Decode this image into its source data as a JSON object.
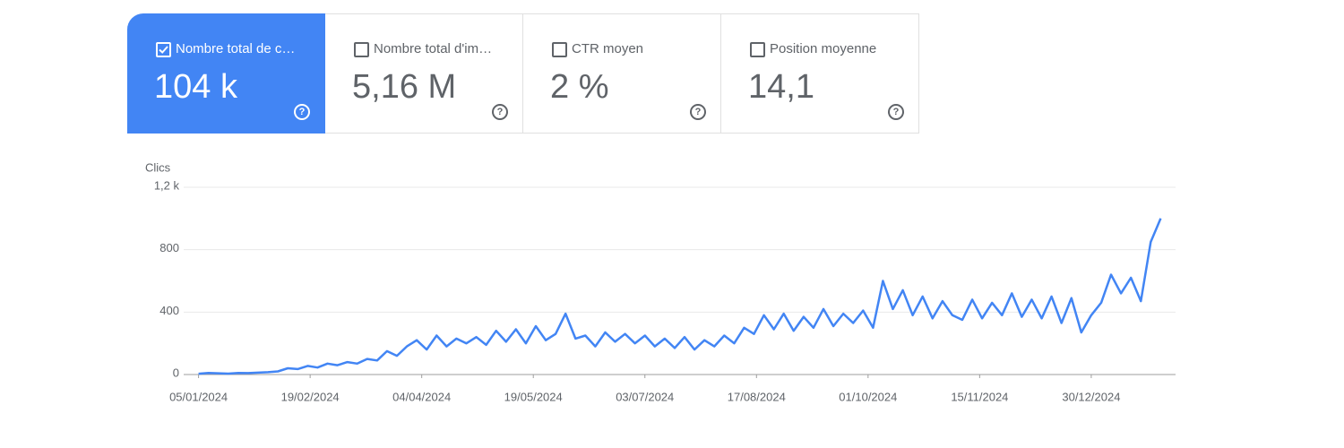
{
  "cards": [
    {
      "label": "Nombre total de c…",
      "value": "104 k",
      "selected": true
    },
    {
      "label": "Nombre total d'im…",
      "value": "5,16 M",
      "selected": false
    },
    {
      "label": "CTR moyen",
      "value": "2 %",
      "selected": false
    },
    {
      "label": "Position moyenne",
      "value": "14,1",
      "selected": false
    }
  ],
  "chart_data": {
    "type": "line",
    "y_label": "Clics",
    "color": "#4285f4",
    "x": [
      "05/01/2024",
      "09/01/2024",
      "13/01/2024",
      "17/01/2024",
      "21/01/2024",
      "25/01/2024",
      "29/01/2024",
      "02/02/2024",
      "06/02/2024",
      "10/02/2024",
      "14/02/2024",
      "18/02/2024",
      "22/02/2024",
      "26/02/2024",
      "01/03/2024",
      "05/03/2024",
      "09/03/2024",
      "13/03/2024",
      "17/03/2024",
      "21/03/2024",
      "25/03/2024",
      "29/03/2024",
      "02/04/2024",
      "06/04/2024",
      "10/04/2024",
      "14/04/2024",
      "18/04/2024",
      "22/04/2024",
      "26/04/2024",
      "30/04/2024",
      "04/05/2024",
      "08/05/2024",
      "12/05/2024",
      "16/05/2024",
      "20/05/2024",
      "24/05/2024",
      "28/05/2024",
      "01/06/2024",
      "05/06/2024",
      "09/06/2024",
      "13/06/2024",
      "17/06/2024",
      "21/06/2024",
      "25/06/2024",
      "29/06/2024",
      "03/07/2024",
      "07/07/2024",
      "11/07/2024",
      "15/07/2024",
      "19/07/2024",
      "23/07/2024",
      "27/07/2024",
      "31/07/2024",
      "04/08/2024",
      "08/08/2024",
      "12/08/2024",
      "16/08/2024",
      "20/08/2024",
      "24/08/2024",
      "28/08/2024",
      "01/09/2024",
      "05/09/2024",
      "09/09/2024",
      "13/09/2024",
      "17/09/2024",
      "21/09/2024",
      "25/09/2024",
      "29/09/2024",
      "03/10/2024",
      "07/10/2024",
      "11/10/2024",
      "15/10/2024",
      "19/10/2024",
      "23/10/2024",
      "27/10/2024",
      "31/10/2024",
      "04/11/2024",
      "08/11/2024",
      "12/11/2024",
      "16/11/2024",
      "20/11/2024",
      "24/11/2024",
      "28/11/2024",
      "02/12/2024",
      "06/12/2024",
      "10/12/2024",
      "14/12/2024",
      "18/12/2024",
      "22/12/2024",
      "26/12/2024",
      "30/12/2024",
      "03/01/2025",
      "07/01/2025",
      "11/01/2025",
      "15/01/2025",
      "19/01/2025",
      "23/01/2025",
      "27/01/2025"
    ],
    "values": [
      5,
      10,
      8,
      6,
      10,
      9,
      12,
      15,
      20,
      40,
      35,
      55,
      45,
      70,
      60,
      80,
      70,
      100,
      90,
      150,
      120,
      180,
      220,
      160,
      250,
      180,
      230,
      200,
      240,
      190,
      280,
      210,
      290,
      200,
      310,
      220,
      260,
      390,
      230,
      250,
      180,
      270,
      210,
      260,
      200,
      250,
      180,
      230,
      170,
      240,
      160,
      220,
      180,
      250,
      200,
      300,
      260,
      380,
      290,
      390,
      280,
      370,
      300,
      420,
      310,
      390,
      330,
      410,
      300,
      600,
      420,
      540,
      380,
      500,
      360,
      470,
      380,
      350,
      480,
      360,
      460,
      380,
      520,
      370,
      480,
      360,
      500,
      330,
      490,
      270,
      380,
      460,
      640,
      520,
      620,
      470,
      850,
      1000
    ],
    "xlim": [
      "30/12/2023",
      "02/02/2025"
    ],
    "xticks": [
      "05/01/2024",
      "19/02/2024",
      "04/04/2024",
      "19/05/2024",
      "03/07/2024",
      "17/08/2024",
      "01/10/2024",
      "15/11/2024",
      "30/12/2024"
    ],
    "ylim": [
      0,
      1200
    ],
    "yticks": [
      0,
      400,
      800,
      {
        "value": 1200,
        "label": "1,2 k"
      }
    ],
    "grid": true
  }
}
